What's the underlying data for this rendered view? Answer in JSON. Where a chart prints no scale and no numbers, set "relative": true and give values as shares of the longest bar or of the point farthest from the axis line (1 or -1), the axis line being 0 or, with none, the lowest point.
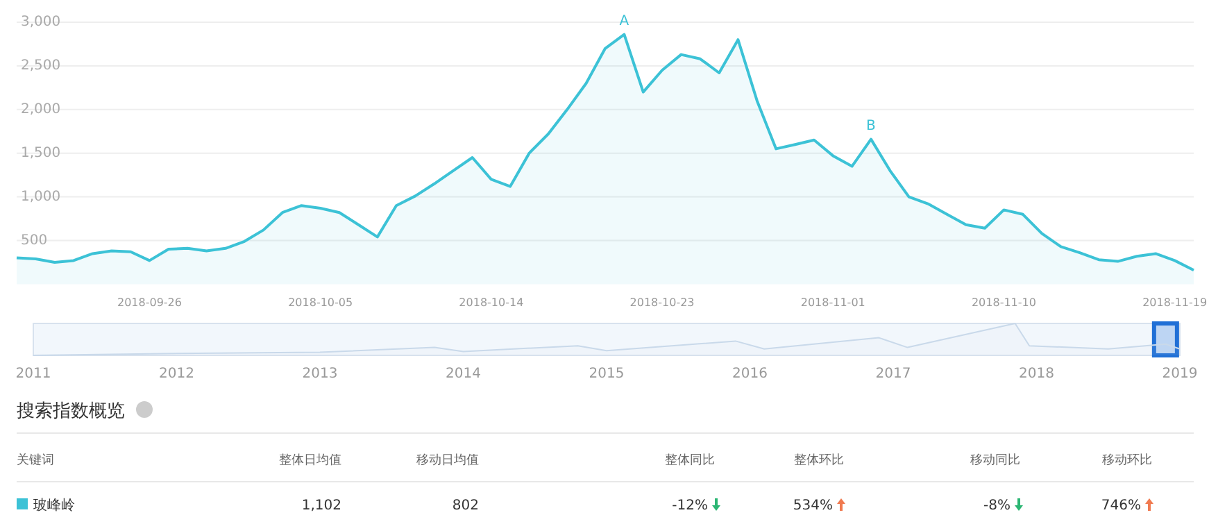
{
  "chart_data": [
    {
      "type": "area",
      "xlim": [
        "2018-09-19",
        "2018-11-20"
      ],
      "ylim": [
        0,
        3000
      ],
      "yticks": [
        500,
        {
          "value": 1000,
          "label": "1,000"
        },
        {
          "value": 1500,
          "label": "1,500"
        },
        {
          "value": 2000,
          "label": "2,000"
        },
        {
          "value": 2500,
          "label": "2,500"
        },
        {
          "value": 3000,
          "label": "3,000"
        }
      ],
      "xticks": [
        {
          "value": "2018-09-26",
          "label": "2018-09-26"
        },
        {
          "value": "2018-10-05",
          "label": "2018-10-05"
        },
        {
          "value": "2018-10-14",
          "label": "2018-10-14"
        },
        {
          "value": "2018-10-23",
          "label": "2018-10-23"
        },
        {
          "value": "2018-11-01",
          "label": "2018-11-01"
        },
        {
          "value": "2018-11-10",
          "label": "2018-11-10"
        },
        {
          "value": "2018-11-19",
          "label": "2018-11-19"
        }
      ],
      "grid": "y",
      "x": [
        "2018-09-19",
        "2018-09-20",
        "2018-09-21",
        "2018-09-22",
        "2018-09-23",
        "2018-09-24",
        "2018-09-25",
        "2018-09-26",
        "2018-09-27",
        "2018-09-28",
        "2018-09-29",
        "2018-09-30",
        "2018-10-01",
        "2018-10-02",
        "2018-10-03",
        "2018-10-04",
        "2018-10-05",
        "2018-10-06",
        "2018-10-07",
        "2018-10-08",
        "2018-10-09",
        "2018-10-10",
        "2018-10-11",
        "2018-10-12",
        "2018-10-13",
        "2018-10-14",
        "2018-10-15",
        "2018-10-16",
        "2018-10-17",
        "2018-10-18",
        "2018-10-19",
        "2018-10-20",
        "2018-10-21",
        "2018-10-22",
        "2018-10-23",
        "2018-10-24",
        "2018-10-25",
        "2018-10-26",
        "2018-10-27",
        "2018-10-28",
        "2018-10-29",
        "2018-10-30",
        "2018-10-31",
        "2018-11-01",
        "2018-11-02",
        "2018-11-03",
        "2018-11-04",
        "2018-11-05",
        "2018-11-06",
        "2018-11-07",
        "2018-11-08",
        "2018-11-09",
        "2018-11-10",
        "2018-11-11",
        "2018-11-12",
        "2018-11-13",
        "2018-11-14",
        "2018-11-15",
        "2018-11-16",
        "2018-11-17",
        "2018-11-18",
        "2018-11-19",
        "2018-11-20"
      ],
      "series": [
        {
          "color": "#3cc2d6",
          "values": [
            300,
            290,
            250,
            270,
            350,
            380,
            370,
            270,
            400,
            410,
            380,
            410,
            490,
            620,
            820,
            900,
            870,
            820,
            680,
            540,
            900,
            1010,
            1150,
            1300,
            1450,
            1200,
            1120,
            1500,
            1720,
            2000,
            2300,
            2700,
            2860,
            2200,
            2450,
            2630,
            2580,
            2420,
            2800,
            2100,
            1550,
            1600,
            1650,
            1470,
            1350,
            1660,
            1300,
            1000,
            920,
            800,
            680,
            640,
            850,
            800,
            580,
            430,
            360,
            280,
            260,
            320,
            350,
            270,
            160
          ]
        }
      ],
      "annotations": [
        {
          "text": "A",
          "x": "2018-10-21",
          "y": 2860
        },
        {
          "text": "B",
          "x": "2018-11-03",
          "y": 1660
        }
      ]
    },
    {
      "type": "area",
      "relative": true,
      "xlim": [
        2011,
        2019
      ],
      "xticks": [
        2011,
        2012,
        2013,
        2014,
        2015,
        2016,
        2017,
        2018,
        2019
      ],
      "bands": [
        {
          "axis": "x",
          "from": 2018.82,
          "to": 2018.98,
          "color": "#1f6fd6"
        }
      ],
      "x": [
        2011,
        2012,
        2013,
        2013.8,
        2014,
        2014.8,
        2015,
        2015.9,
        2016.1,
        2016.9,
        2017.1,
        2017.85,
        2017.95,
        2018.5,
        2018.9,
        2019
      ],
      "series": [
        {
          "color": "#c9d9ea",
          "values": [
            0,
            0.06,
            0.1,
            0.25,
            0.12,
            0.3,
            0.15,
            0.45,
            0.2,
            0.55,
            0.25,
            1,
            0.3,
            0.2,
            0.35,
            0.2
          ]
        }
      ]
    },
    {
      "type": "other",
      "title": "搜索指数概览",
      "annotations": [
        "关键词",
        "整体日均值",
        "移动日均值",
        "整体同比",
        "整体环比",
        "移动同比",
        "移动环比",
        "玻峰岭",
        "1,102",
        "802",
        "-12%",
        "534%",
        "-8%",
        "746%"
      ],
      "colors": [
        "#3cc2d6",
        "#2bb673",
        "#f07a50",
        "#2bb673",
        "#f07a50"
      ]
    }
  ]
}
